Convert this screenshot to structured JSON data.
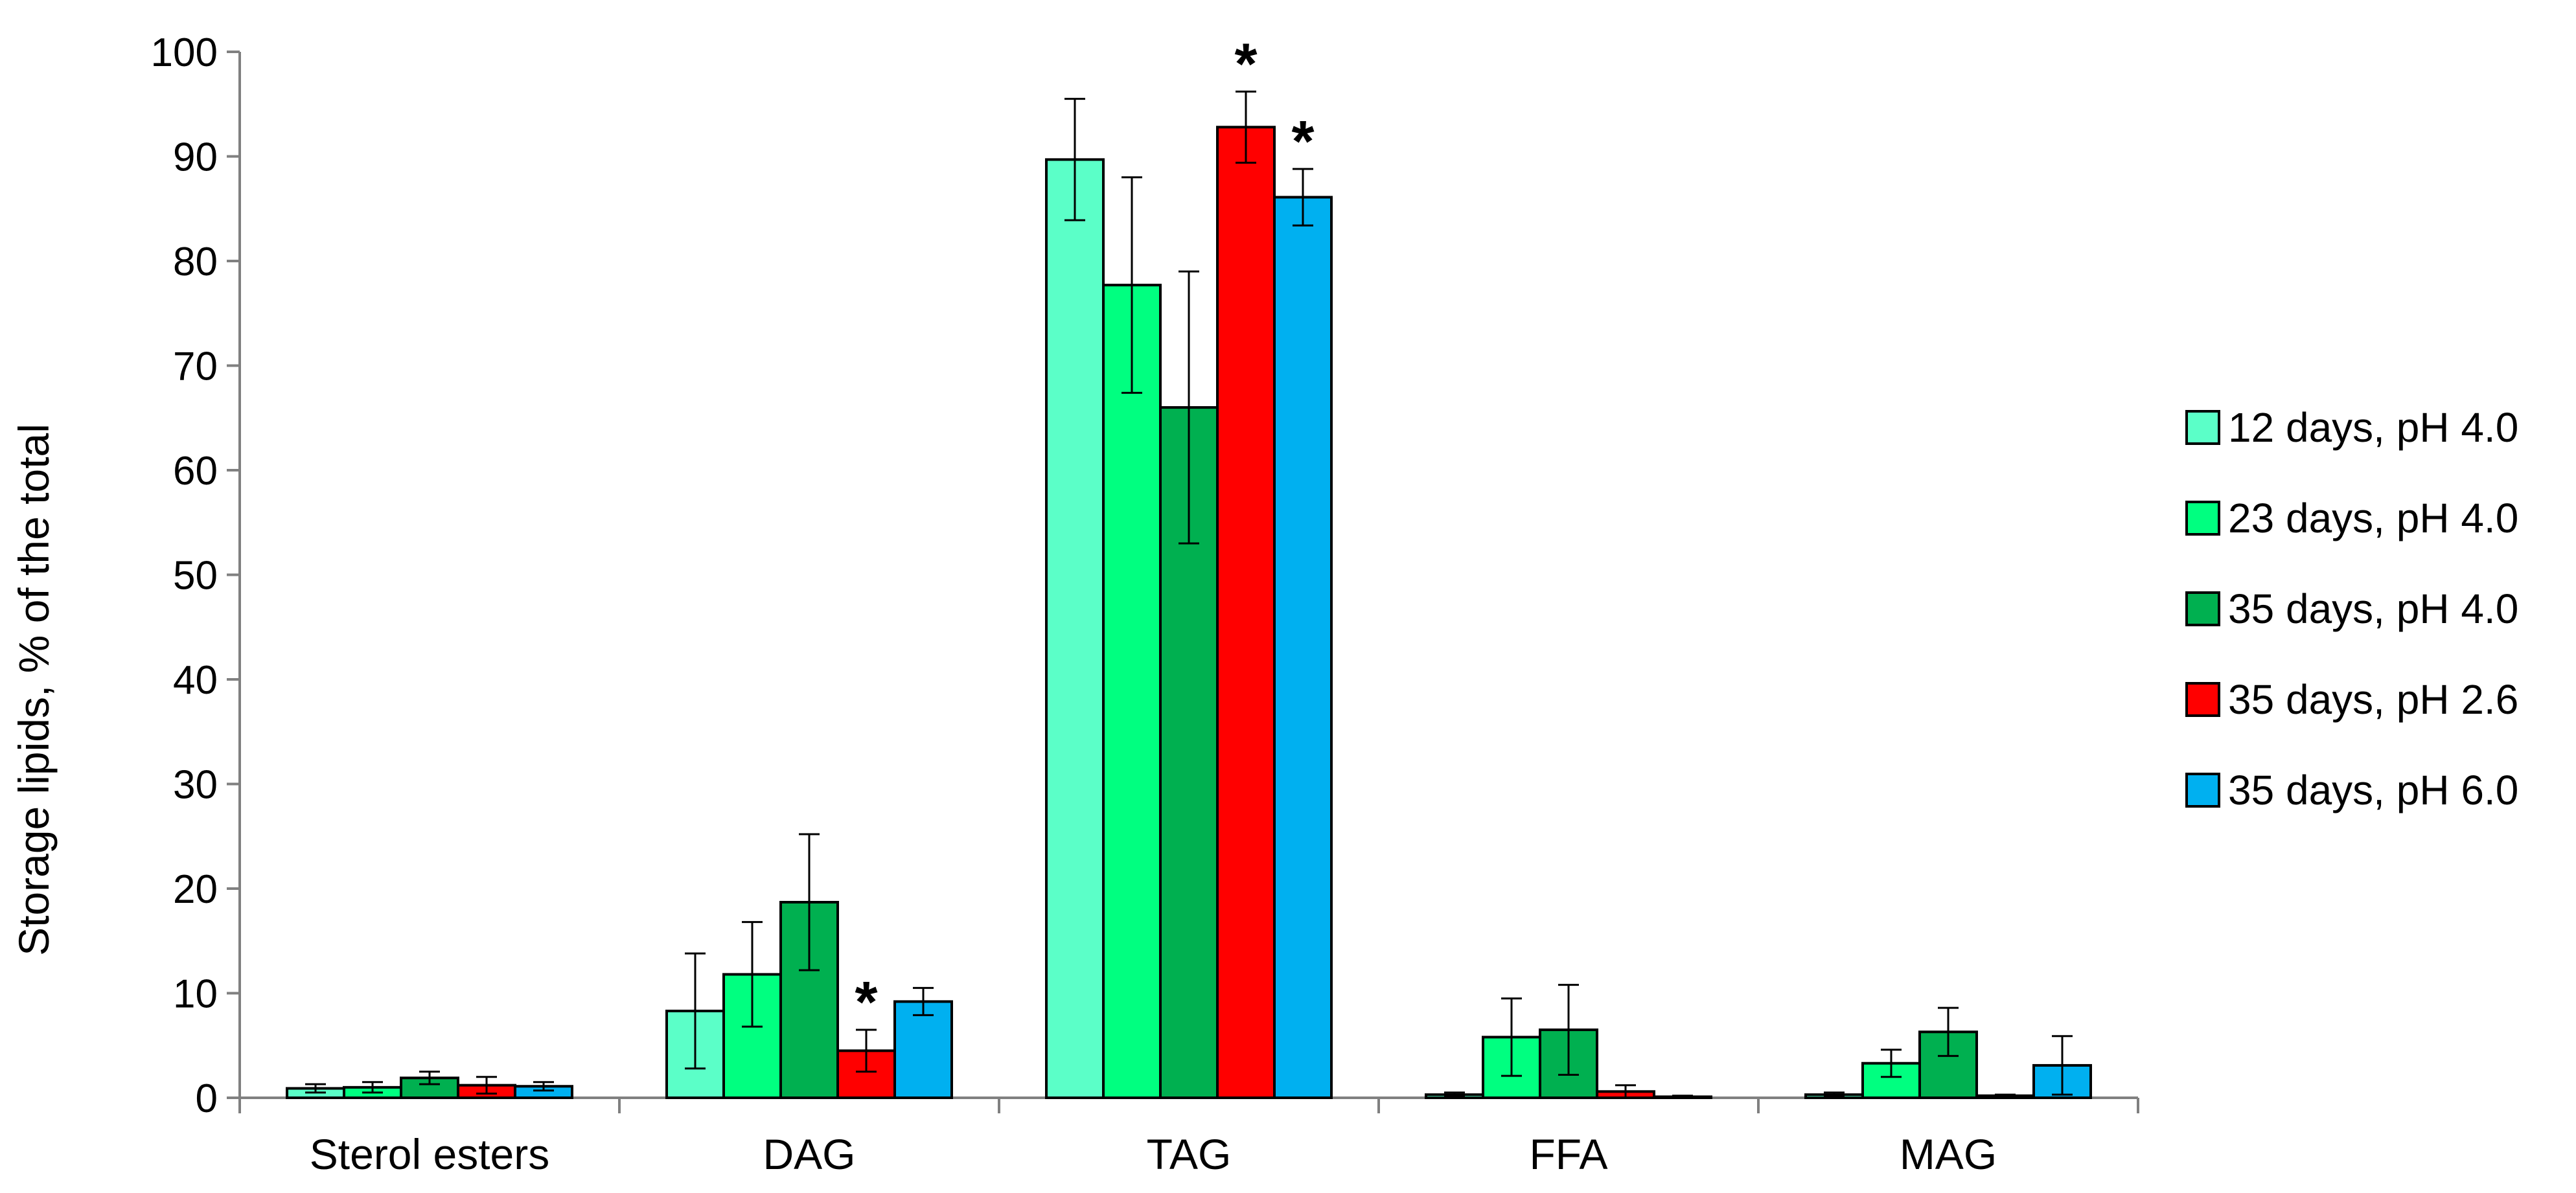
{
  "chart_data": {
    "type": "bar",
    "title": "",
    "xlabel": "",
    "ylabel": "Storage lipids, % of the total",
    "ylim": [
      0,
      100
    ],
    "yticks": [
      0,
      10,
      20,
      30,
      40,
      50,
      60,
      70,
      80,
      90,
      100
    ],
    "grid": false,
    "legend_position": "right",
    "categories": [
      "Sterol esters",
      "DAG",
      "TAG",
      "FFA",
      "MAG"
    ],
    "series": [
      {
        "name": "12 days, pH 4.0",
        "color": "#5BFFC8",
        "values": [
          0.9,
          8.3,
          89.7,
          0.3,
          0.3
        ],
        "errors": [
          0.4,
          5.5,
          5.8,
          0.2,
          0.2
        ],
        "significant": [
          false,
          false,
          false,
          false,
          false
        ]
      },
      {
        "name": "23 days, pH 4.0",
        "color": "#00FF80",
        "values": [
          1.0,
          11.8,
          77.7,
          5.8,
          3.3
        ],
        "errors": [
          0.5,
          5.0,
          10.3,
          3.7,
          1.3
        ],
        "significant": [
          false,
          false,
          false,
          false,
          false
        ]
      },
      {
        "name": "35 days, pH 4.0",
        "color": "#00B050",
        "values": [
          1.9,
          18.7,
          66.0,
          6.5,
          6.3
        ],
        "errors": [
          0.6,
          6.5,
          13.0,
          4.3,
          2.3
        ],
        "significant": [
          false,
          false,
          false,
          false,
          false
        ]
      },
      {
        "name": "35 days, pH 2.6",
        "color": "#FF0000",
        "values": [
          1.2,
          4.5,
          92.8,
          0.6,
          0.2
        ],
        "errors": [
          0.8,
          2.0,
          3.4,
          0.6,
          0.1
        ],
        "significant": [
          false,
          true,
          true,
          false,
          false
        ]
      },
      {
        "name": "35 days, pH 6.0",
        "color": "#00B0F0",
        "values": [
          1.1,
          9.2,
          86.1,
          0.1,
          3.1
        ],
        "errors": [
          0.4,
          1.3,
          2.7,
          0.1,
          2.8
        ],
        "significant": [
          false,
          false,
          true,
          false,
          false
        ]
      }
    ],
    "significance_marker": "*"
  }
}
